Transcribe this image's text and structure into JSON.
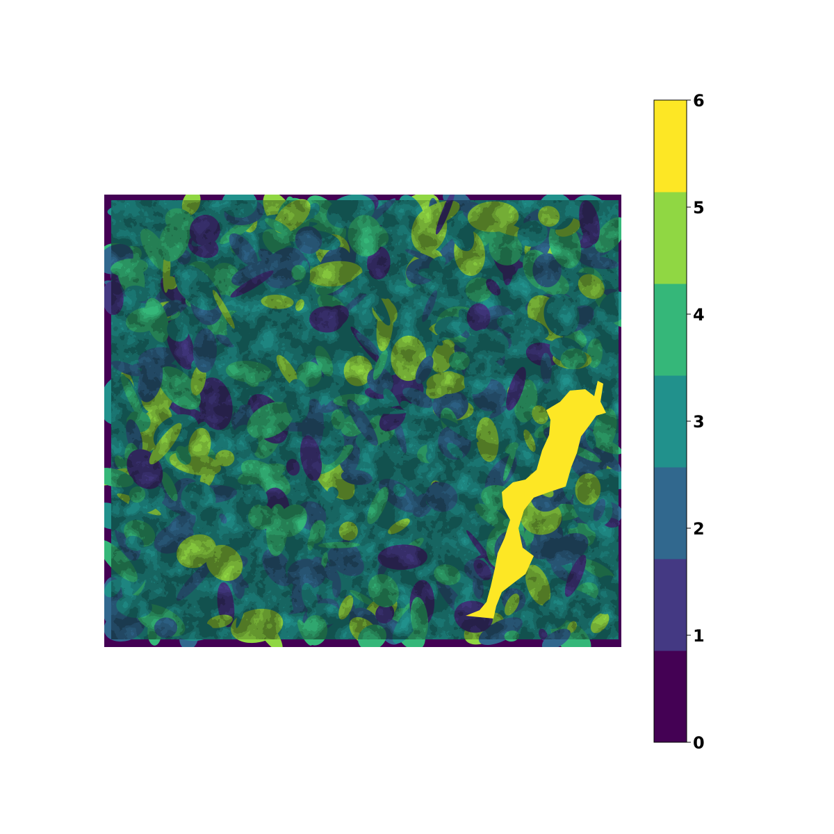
{
  "figure": {
    "type": "classified raster map with discrete colorbar"
  },
  "colorbar": {
    "min": 0,
    "max": 6,
    "classes": 7,
    "ticks": [
      "0",
      "1",
      "2",
      "3",
      "4",
      "5",
      "6"
    ],
    "colors": [
      "#440154",
      "#443983",
      "#31688e",
      "#21918c",
      "#35b779",
      "#90d743",
      "#fde725"
    ]
  },
  "raster": {
    "nodata_border_color": "#440154",
    "dominant_classes": [
      2,
      3,
      4
    ],
    "highlighted_class": 6,
    "highlighted_feature": "lake"
  }
}
